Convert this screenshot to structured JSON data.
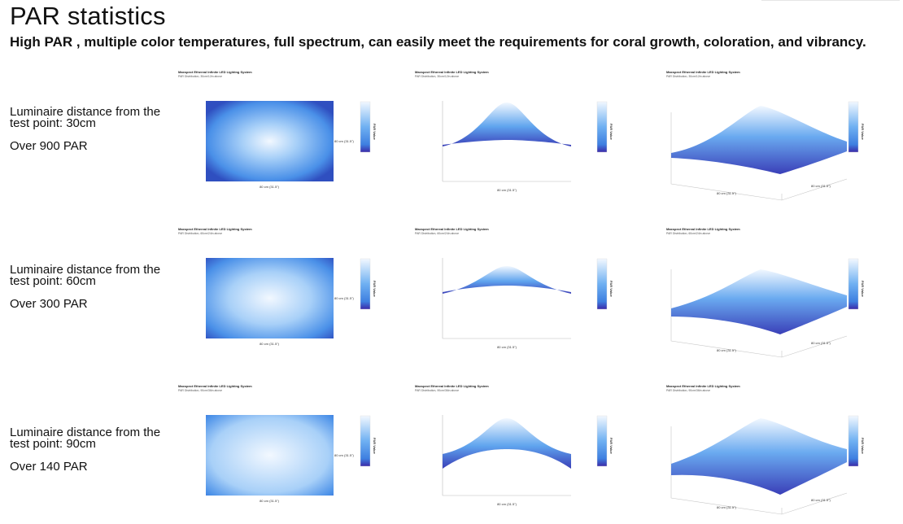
{
  "page": {
    "title": "PAR statistics",
    "subtitle": "High PAR , multiple color temperatures, full spectrum, can easily meet the requirements for coral growth, coloration, and vibrancy."
  },
  "rows": [
    {
      "distance_label": "Luminaire distance from the test point: 30cm",
      "par_label": "Over 900 PAR",
      "panel_title": "Maxspect Ethereal Infinite LED Lighting System",
      "panel_subtitle": "PAR Distribution, 30cm/12in above",
      "x_axis_label": "80 cm (31.5\")",
      "y_axis_label": "80 cm (31.5\")",
      "colorbar_label": "PAR Value"
    },
    {
      "distance_label": "Luminaire distance from the test point: 60cm",
      "par_label": "Over 300 PAR",
      "panel_title": "Maxspect Ethereal Infinite LED Lighting System",
      "panel_subtitle": "PAR Distribution, 60cm/24in above",
      "x_axis_label": "80 cm (31.5\")",
      "y_axis_label": "80 cm (31.5\")",
      "colorbar_label": "PAR Value"
    },
    {
      "distance_label": "Luminaire distance from the test point: 90cm",
      "par_label": "Over 140 PAR",
      "panel_title": "Maxspect Ethereal Infinite LED Lighting System",
      "panel_subtitle": "PAR Distribution, 90cm/36in above",
      "x_axis_label": "80 cm (31.5\")",
      "y_axis_label": "80 cm (31.5\")",
      "colorbar_label": "PAR Value"
    }
  ],
  "colors": {
    "high": "#f2f8ff",
    "mid": "#4a90e8",
    "low": "#3a3fb8",
    "edge": "#2f4fc0"
  }
}
